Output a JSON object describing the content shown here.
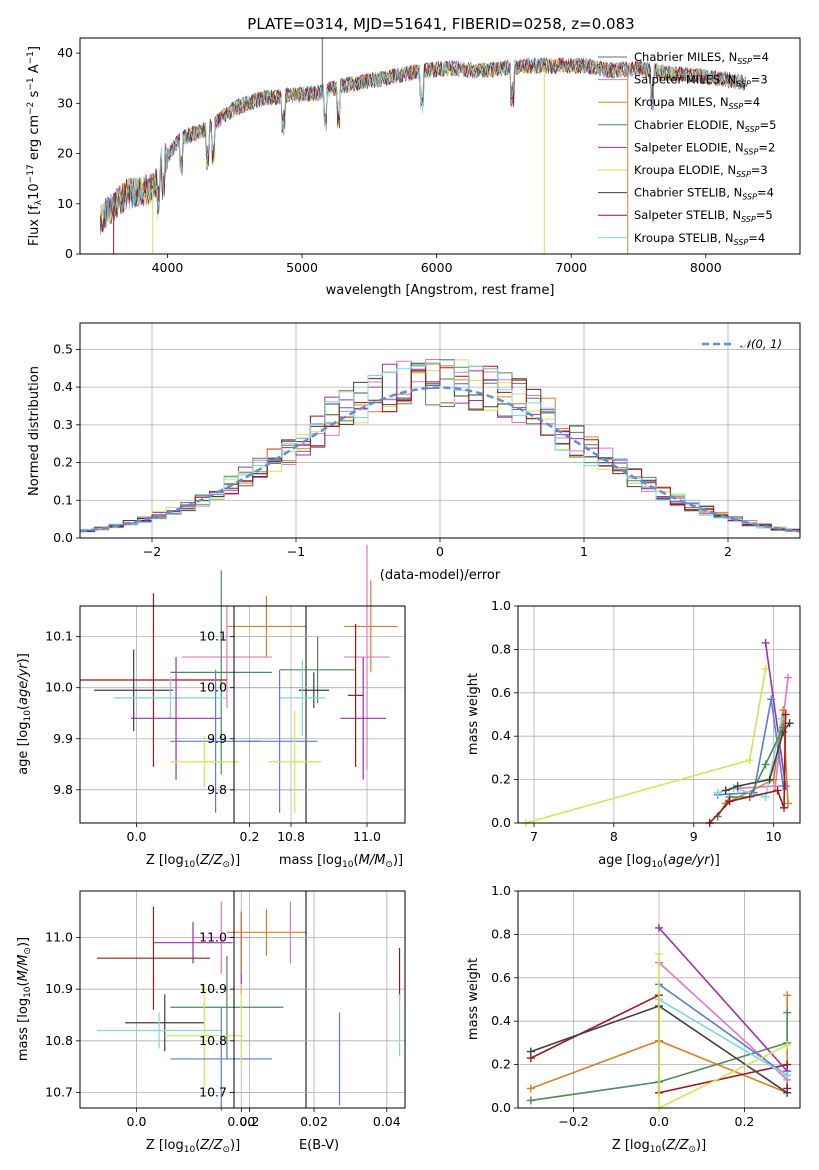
{
  "chart_data": [
    {
      "id": "spectrum",
      "type": "line",
      "title": "PLATE=0314, MJD=51641, FIBERID=0258, z=0.083",
      "xlabel": "wavelength [Angstrom, rest frame]",
      "ylabel": "Flux [f_λ 10^-17 erg cm^-2 s^-1 A^-1]",
      "xlim": [
        3350,
        8700
      ],
      "ylim": [
        0,
        43
      ],
      "xticks": [
        4000,
        5000,
        6000,
        7000,
        8000
      ],
      "yticks": [
        0,
        10,
        20,
        30,
        40
      ],
      "grid": false,
      "legend_position": "top-right",
      "continuum": {
        "x": [
          3500,
          3700,
          3900,
          3950,
          4100,
          4300,
          4500,
          4700,
          4900,
          5100,
          5300,
          5500,
          5700,
          5900,
          6100,
          6300,
          6500,
          6700,
          6900,
          7100,
          7300,
          7500,
          7700,
          7900,
          8100,
          8300
        ],
        "y": [
          7,
          12,
          13,
          18,
          23,
          25,
          29,
          31,
          31.5,
          32,
          33.5,
          34.5,
          35.5,
          36.5,
          37,
          36.5,
          37,
          37.5,
          37.5,
          37.5,
          36.5,
          37,
          36,
          35.5,
          35,
          34
        ]
      },
      "series": [
        {
          "name": "Chabrier MILES, N_SSP=4",
          "color": "#5a6e94"
        },
        {
          "name": "Salpeter MILES, N_SSP=3",
          "color": "#e377c2"
        },
        {
          "name": "Kroupa MILES, N_SSP=4",
          "color": "#d6812a"
        },
        {
          "name": "Chabrier ELODIE, N_SSP=5",
          "color": "#4e8a5a"
        },
        {
          "name": "Salpeter ELODIE, N_SSP=2",
          "color": "#9b30b0"
        },
        {
          "name": "Kroupa ELODIE, N_SSP=3",
          "color": "#d4e35a"
        },
        {
          "name": "Chabrier STELIB, N_SSP=4",
          "color": "#404040"
        },
        {
          "name": "Salpeter STELIB, N_SSP=5",
          "color": "#a01818"
        },
        {
          "name": "Kroupa STELIB, N_SSP=4",
          "color": "#7fd6e0"
        }
      ],
      "spikes": [
        {
          "x": 5150,
          "y": 43,
          "color": "#606060"
        },
        {
          "x": 6800,
          "y": 0,
          "color": "#d4e35a"
        },
        {
          "x": 7420,
          "y": 0,
          "color": "#d6812a"
        },
        {
          "x": 3890,
          "y": 0,
          "color": "#d4e35a"
        },
        {
          "x": 3600,
          "y": 0,
          "color": "#a01818"
        }
      ]
    },
    {
      "id": "residuals",
      "type": "histogram",
      "xlabel": "(data-model)/error",
      "ylabel": "Normed distribution",
      "xlim": [
        -2.5,
        2.5
      ],
      "ylim": [
        0,
        0.57
      ],
      "xticks": [
        -2,
        -1,
        0,
        1,
        2
      ],
      "yticks": [
        0.0,
        0.1,
        0.2,
        0.3,
        0.4,
        0.5
      ],
      "grid": true,
      "legend_label": "N(0,1)",
      "legend_position": "top-right",
      "bin_width": 0.1
    },
    {
      "id": "age-vs-Z",
      "type": "errorbar",
      "xlabel": "Z [log10(Z/Z⊙)]",
      "ylabel": "age [log10(age/yr)]",
      "xlim": [
        -0.1,
        0.3
      ],
      "ylim": [
        9.735,
        10.16
      ],
      "xticks": [
        0.0,
        0.2
      ],
      "yticks": [
        9.8,
        9.9,
        10.0,
        10.1
      ],
      "grid": true,
      "points": [
        {
          "x": 0.23,
          "y": 10.12,
          "xerr": 0.07,
          "yerr": 0.06,
          "color": "#d6812a"
        },
        {
          "x": 0.16,
          "y": 10.06,
          "xerr": 0.08,
          "yerr": 0.1,
          "color": "#e377c2"
        },
        {
          "x": 0.15,
          "y": 10.03,
          "xerr": 0.09,
          "yerr": 0.2,
          "color": "#4e8a5a"
        },
        {
          "x": 0.03,
          "y": 10.015,
          "xerr": 0.13,
          "yerr": 0.17,
          "color": "#a01818"
        },
        {
          "x": -0.005,
          "y": 9.995,
          "xerr": 0.07,
          "yerr": 0.08,
          "color": "#404040"
        },
        {
          "x": 0.06,
          "y": 9.98,
          "xerr": 0.1,
          "yerr": 0.04,
          "color": "#7fd6e0"
        },
        {
          "x": 0.07,
          "y": 9.94,
          "xerr": 0.08,
          "yerr": 0.12,
          "color": "#9b30b0"
        },
        {
          "x": 0.14,
          "y": 9.895,
          "xerr": 0.08,
          "yerr": 0.14,
          "color": "#5a7fd0"
        },
        {
          "x": 0.12,
          "y": 9.855,
          "xerr": 0.06,
          "yerr": 0.05,
          "color": "#d4e35a"
        }
      ]
    },
    {
      "id": "age-vs-mass",
      "type": "errorbar",
      "xlabel": "mass [log10(M/M⊙)]",
      "ylabel": "",
      "xlim": [
        10.65,
        11.1
      ],
      "ylim": [
        9.735,
        10.16
      ],
      "xticks": [
        10.8,
        11.0
      ],
      "yticks": [
        9.8,
        9.9,
        10.0,
        10.1
      ],
      "grid": true,
      "points": [
        {
          "x": 11.01,
          "y": 10.12,
          "xerr": 0.07,
          "yerr": 0.09,
          "color": "#d6812a"
        },
        {
          "x": 11.0,
          "y": 10.06,
          "xerr": 0.06,
          "yerr": 0.22,
          "color": "#e377c2"
        },
        {
          "x": 10.87,
          "y": 10.035,
          "xerr": 0.1,
          "yerr": 0.065,
          "color": "#4e8a5a"
        },
        {
          "x": 10.86,
          "y": 9.995,
          "xerr": 0.04,
          "yerr": 0.035,
          "color": "#404040"
        },
        {
          "x": 10.83,
          "y": 9.98,
          "xerr": 0.06,
          "yerr": 0.075,
          "color": "#7fd6e0"
        },
        {
          "x": 10.99,
          "y": 9.94,
          "xerr": 0.06,
          "yerr": 0.12,
          "color": "#9b30b0"
        },
        {
          "x": 10.97,
          "y": 9.985,
          "xerr": 0.02,
          "yerr": 0.14,
          "color": "#a01818"
        },
        {
          "x": 10.77,
          "y": 9.895,
          "xerr": 0.1,
          "yerr": 0.14,
          "color": "#5a7fd0"
        },
        {
          "x": 10.81,
          "y": 9.855,
          "xerr": 0.07,
          "yerr": 0.1,
          "color": "#d4e35a"
        }
      ]
    },
    {
      "id": "massweight-vs-age",
      "type": "line",
      "xlabel": "age [log10(age/yr)]",
      "ylabel": "mass weight",
      "xlim": [
        6.8,
        10.33
      ],
      "ylim": [
        0.0,
        1.0
      ],
      "xticks": [
        7,
        8,
        9,
        10
      ],
      "yticks": [
        0.0,
        0.2,
        0.4,
        0.6,
        0.8,
        1.0
      ],
      "grid": true,
      "series": [
        {
          "color": "#d4e35a",
          "x": [
            6.9,
            9.7,
            9.9
          ],
          "y": [
            0.0,
            0.29,
            0.71
          ]
        },
        {
          "color": "#9b30b0",
          "x": [
            9.9,
            10.15
          ],
          "y": [
            0.83,
            0.17
          ]
        },
        {
          "color": "#e377c2",
          "x": [
            9.55,
            10.02,
            10.18
          ],
          "y": [
            0.16,
            0.17,
            0.67
          ]
        },
        {
          "color": "#d6812a",
          "x": [
            9.4,
            10.0,
            10.12,
            10.18
          ],
          "y": [
            0.09,
            0.2,
            0.52,
            0.09
          ]
        },
        {
          "color": "#5a7fd0",
          "x": [
            9.3,
            9.75,
            9.97,
            10.12
          ],
          "y": [
            0.13,
            0.14,
            0.57,
            0.17
          ]
        },
        {
          "color": "#7fd6e0",
          "x": [
            9.3,
            9.5,
            9.9,
            10.1
          ],
          "y": [
            0.14,
            0.16,
            0.12,
            0.48
          ]
        },
        {
          "color": "#404040",
          "x": [
            9.4,
            9.55,
            9.95,
            10.12,
            10.2
          ],
          "y": [
            0.15,
            0.17,
            0.2,
            0.42,
            0.46
          ]
        },
        {
          "color": "#4e8a5a",
          "x": [
            9.3,
            9.45,
            9.7,
            9.9,
            10.12
          ],
          "y": [
            0.03,
            0.12,
            0.12,
            0.27,
            0.44
          ]
        },
        {
          "color": "#a01818",
          "x": [
            9.2,
            9.45,
            10.05,
            10.13,
            10.15
          ],
          "y": [
            0.0,
            0.1,
            0.15,
            0.07,
            0.5
          ]
        }
      ]
    },
    {
      "id": "mass-vs-Z",
      "type": "errorbar",
      "xlabel": "Z [log10(Z/Z⊙)]",
      "ylabel": "mass [log10(M/M⊙)]",
      "xlim": [
        -0.1,
        0.3
      ],
      "ylim": [
        10.67,
        11.09
      ],
      "xticks": [
        0.0,
        0.2
      ],
      "yticks": [
        10.7,
        10.8,
        10.9,
        11.0
      ],
      "grid": true,
      "points": [
        {
          "x": 0.23,
          "y": 11.01,
          "xerr": 0.07,
          "yerr": 0.045,
          "color": "#d6812a"
        },
        {
          "x": 0.15,
          "y": 11.0,
          "xerr": 0.05,
          "yerr": 0.07,
          "color": "#e377c2"
        },
        {
          "x": 0.1,
          "y": 10.99,
          "xerr": 0.07,
          "yerr": 0.04,
          "color": "#9b30b0"
        },
        {
          "x": 0.03,
          "y": 10.96,
          "xerr": 0.1,
          "yerr": 0.1,
          "color": "#a01818"
        },
        {
          "x": 0.16,
          "y": 10.865,
          "xerr": 0.1,
          "yerr": 0.1,
          "color": "#4e8a5a"
        },
        {
          "x": 0.05,
          "y": 10.835,
          "xerr": 0.07,
          "yerr": 0.055,
          "color": "#404040"
        },
        {
          "x": 0.04,
          "y": 10.82,
          "xerr": 0.11,
          "yerr": 0.035,
          "color": "#7fd6e0"
        },
        {
          "x": 0.12,
          "y": 10.81,
          "xerr": 0.07,
          "yerr": 0.1,
          "color": "#d4e35a"
        },
        {
          "x": 0.15,
          "y": 10.765,
          "xerr": 0.09,
          "yerr": 0.1,
          "color": "#5a7fd0"
        }
      ]
    },
    {
      "id": "mass-vs-ebv",
      "type": "errorbar",
      "xlabel": "E(B-V)",
      "ylabel": "",
      "xlim": [
        -0.002,
        0.045
      ],
      "ylim": [
        10.67,
        11.09
      ],
      "xticks": [
        0.0,
        0.02,
        0.04
      ],
      "yticks": [
        10.7,
        10.8,
        10.9,
        11.0
      ],
      "grid": true,
      "points": [
        {
          "x": 0.0,
          "y": 10.97,
          "xerr": 0,
          "yerr": 0.08,
          "color": "#9b30b0"
        },
        {
          "x": 0.0,
          "y": 10.83,
          "xerr": 0,
          "yerr": 0.08,
          "color": "#d4e35a"
        },
        {
          "x": 0.0,
          "y": 10.99,
          "xerr": 0,
          "yerr": 0.06,
          "color": "#d6812a"
        },
        {
          "x": 0.0135,
          "y": 11.01,
          "xerr": 0,
          "yerr": 0.06,
          "color": "#e377c2"
        },
        {
          "x": 0.027,
          "y": 10.765,
          "xerr": 0,
          "yerr": 0.09,
          "color": "#5a7fd0"
        },
        {
          "x": 0.0435,
          "y": 10.93,
          "xerr": 0,
          "yerr": 0.05,
          "color": "#a01818"
        },
        {
          "x": 0.0435,
          "y": 10.83,
          "xerr": 0,
          "yerr": 0.06,
          "color": "#7fd6e0"
        }
      ]
    },
    {
      "id": "massweight-vs-Z",
      "type": "line",
      "xlabel": "Z [log10(Z/Z⊙)]",
      "ylabel": "mass weight",
      "xlim": [
        -0.33,
        0.33
      ],
      "ylim": [
        0.0,
        1.0
      ],
      "xticks": [
        -0.2,
        0.0,
        0.2
      ],
      "yticks": [
        0.0,
        0.2,
        0.4,
        0.6,
        0.8,
        1.0
      ],
      "grid": true,
      "series": [
        {
          "color": "#d6812a",
          "x": [
            -0.3,
            0.0,
            0.3,
            0.3
          ],
          "y": [
            0.09,
            0.31,
            0.07,
            0.52
          ]
        },
        {
          "color": "#4e8a5a",
          "x": [
            -0.3,
            0.0,
            0.3,
            0.3
          ],
          "y": [
            0.035,
            0.12,
            0.3,
            0.44
          ]
        },
        {
          "color": "#a01818",
          "x": [
            -0.3,
            0.0,
            0.0,
            0.3,
            0.3
          ],
          "y": [
            0.23,
            0.52,
            0.07,
            0.2,
            0.09
          ]
        },
        {
          "color": "#404040",
          "x": [
            -0.3,
            0.0,
            0.3
          ],
          "y": [
            0.26,
            0.47,
            0.07
          ]
        },
        {
          "color": "#9b30b0",
          "x": [
            0.0,
            0.3
          ],
          "y": [
            0.83,
            0.17
          ]
        },
        {
          "color": "#e377c2",
          "x": [
            0.0,
            0.3
          ],
          "y": [
            0.67,
            0.13
          ]
        },
        {
          "color": "#5a7fd0",
          "x": [
            0.0,
            0.3
          ],
          "y": [
            0.57,
            0.15
          ]
        },
        {
          "color": "#7fd6e0",
          "x": [
            0.0,
            0.3
          ],
          "y": [
            0.5,
            0.15
          ]
        },
        {
          "color": "#d4e35a",
          "x": [
            0.0,
            0.0,
            0.3
          ],
          "y": [
            0.71,
            0.0,
            0.29
          ]
        }
      ]
    }
  ]
}
